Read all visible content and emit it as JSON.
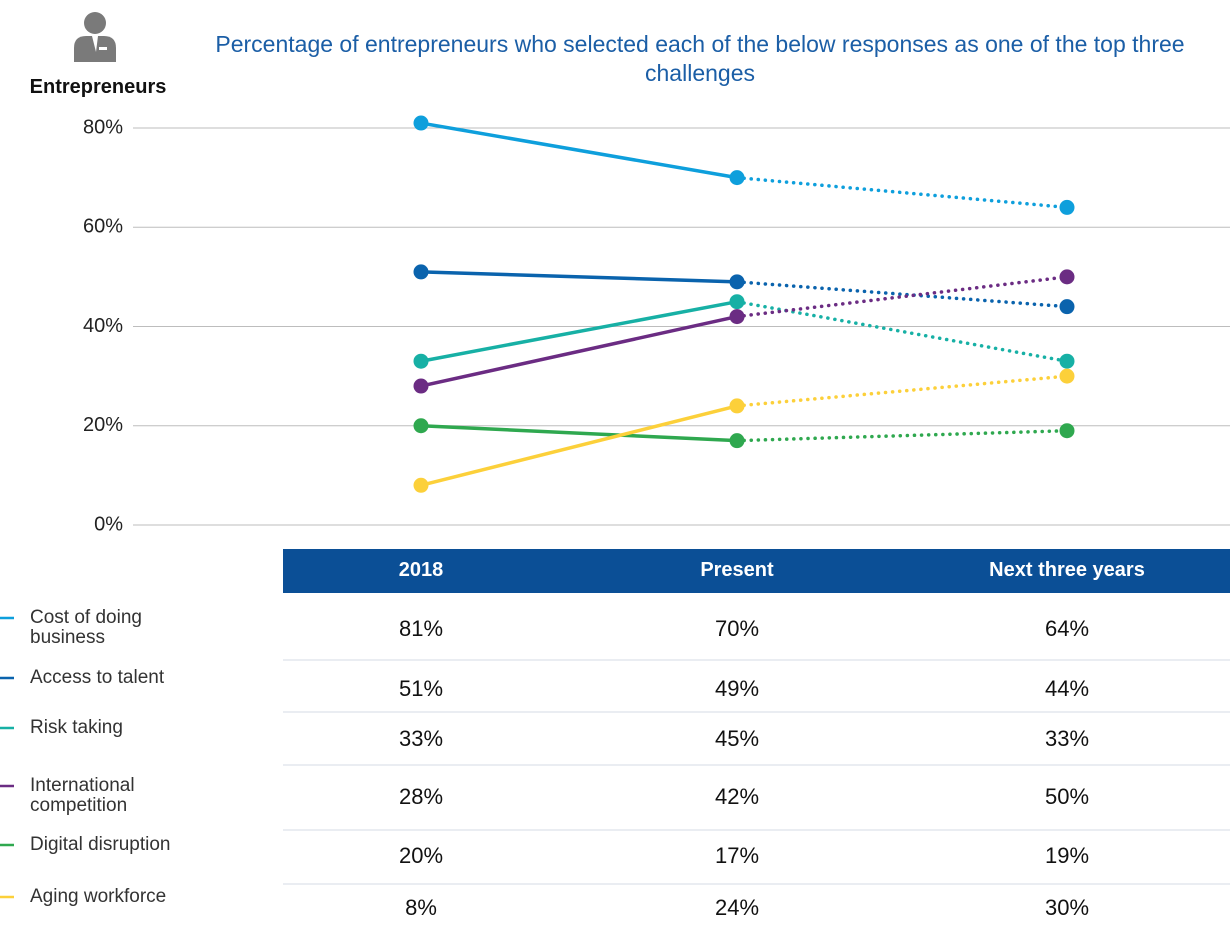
{
  "header": {
    "label": "Entrepreneurs"
  },
  "chart_data": {
    "type": "line",
    "title": "Percentage of entrepreneurs who selected each of the below responses as one of the top three challenges",
    "categories": [
      "2018",
      "Present",
      "Next three years"
    ],
    "ylim": [
      0,
      80
    ],
    "yticks": [
      {
        "value": 0,
        "label": "0%"
      },
      {
        "value": 20,
        "label": "20%"
      },
      {
        "value": 40,
        "label": "40%"
      },
      {
        "value": 60,
        "label": "60%"
      },
      {
        "value": 80,
        "label": "80%"
      }
    ],
    "grid": true,
    "series": [
      {
        "name": "Cost of doing business",
        "color": "#0e9fdc",
        "values": [
          81,
          70,
          64
        ],
        "value_labels": [
          "81%",
          "70%",
          "64%"
        ]
      },
      {
        "name": "Access to talent",
        "color": "#0a63ad",
        "values": [
          51,
          49,
          44
        ],
        "value_labels": [
          "51%",
          "49%",
          "44%"
        ]
      },
      {
        "name": "Risk taking",
        "color": "#17b0a5",
        "values": [
          33,
          45,
          33
        ],
        "value_labels": [
          "33%",
          "45%",
          "33%"
        ]
      },
      {
        "name": "International competition",
        "color": "#6b2c83",
        "values": [
          28,
          42,
          50
        ],
        "value_labels": [
          "28%",
          "42%",
          "50%"
        ]
      },
      {
        "name": "Digital disruption",
        "color": "#2fa84f",
        "values": [
          20,
          17,
          19
        ],
        "value_labels": [
          "20%",
          "17%",
          "19%"
        ]
      },
      {
        "name": "Aging workforce",
        "color": "#fcd03a",
        "values": [
          8,
          24,
          30
        ],
        "value_labels": [
          "8%",
          "24%",
          "30%"
        ]
      }
    ]
  }
}
